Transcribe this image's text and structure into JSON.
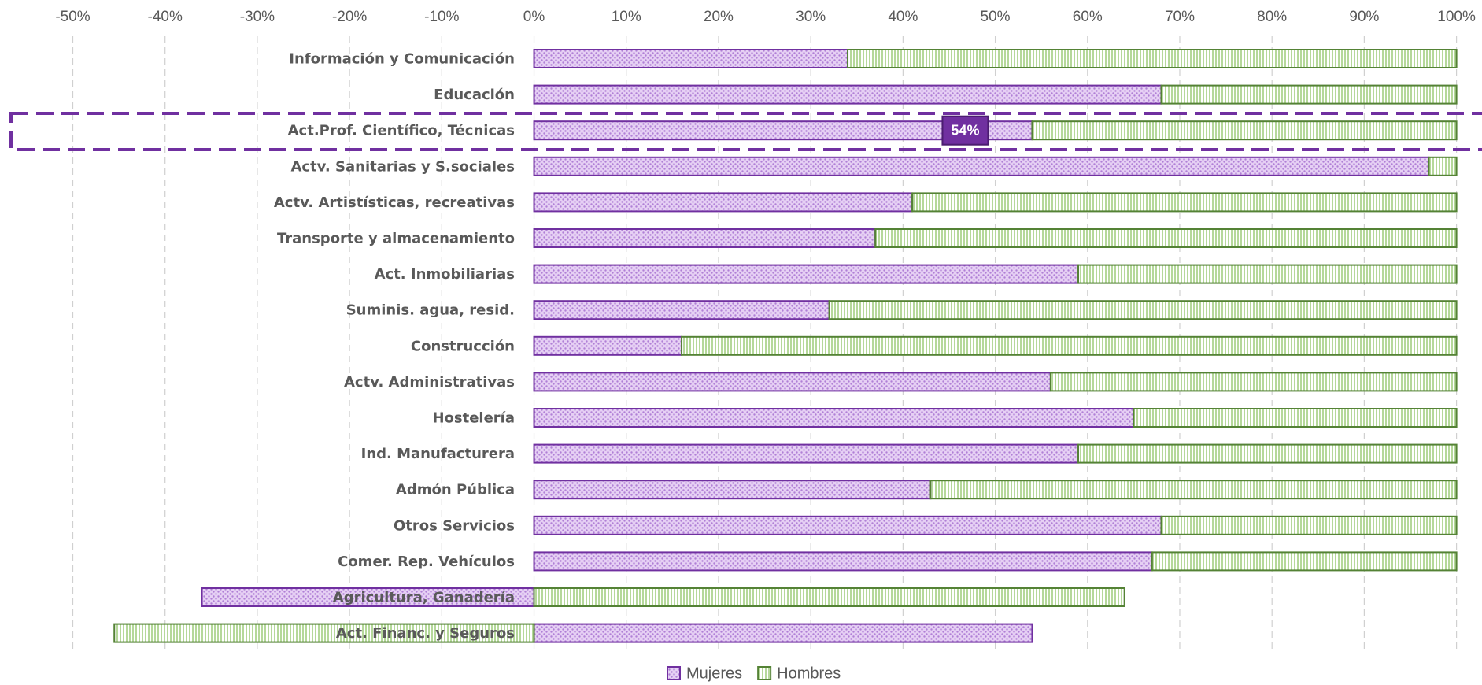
{
  "chart_data": {
    "type": "stacked-bar-horizontal",
    "categories": [
      "Información y Comunicación",
      "Educación",
      "Act.Prof. Científico, Técnicas",
      "Actv. Sanitarias y S.sociales",
      "Actv. Artistísticas, recreativas",
      "Transporte y almacenamiento",
      "Act. Inmobiliarias",
      "Suminis. agua, resid.",
      "Construcción",
      "Actv. Administrativas ",
      "Hostelería",
      "Ind. Manufacturera",
      "Admón Pública",
      "Otros Servicios",
      "Comer. Rep. Vehículos",
      "Agricultura, Ganadería",
      "Act. Financ. y Seguros"
    ],
    "series": [
      {
        "name": "Mujeres",
        "color": "#7030a0",
        "fill": "#d9b8ee",
        "values": [
          34,
          68,
          54,
          97,
          41,
          37,
          59,
          32,
          16,
          56,
          65,
          59,
          43,
          68,
          67,
          -36,
          54
        ],
        "value_labels": [
          null,
          null,
          "54%",
          null,
          null,
          null,
          null,
          null,
          null,
          null,
          null,
          null,
          null,
          null,
          null,
          null,
          null
        ]
      },
      {
        "name": "Hombres",
        "color": "#548235",
        "fill": "#c5e0b4",
        "values": [
          66,
          32,
          46,
          3,
          59,
          63,
          41,
          68,
          84,
          44,
          35,
          41,
          57,
          32,
          33,
          64,
          -45.5
        ]
      }
    ],
    "xlim": [
      -50,
      100
    ],
    "xticks": [
      {
        "value": -50,
        "label": "-50%"
      },
      {
        "value": -40,
        "label": "-40%"
      },
      {
        "value": -30,
        "label": "-30%"
      },
      {
        "value": -20,
        "label": "-20%"
      },
      {
        "value": -10,
        "label": "-10%"
      },
      {
        "value": 0,
        "label": "0%"
      },
      {
        "value": 10,
        "label": "10%"
      },
      {
        "value": 20,
        "label": "20%"
      },
      {
        "value": 30,
        "label": "30%"
      },
      {
        "value": 40,
        "label": "40%"
      },
      {
        "value": 50,
        "label": "50%"
      },
      {
        "value": 60,
        "label": "60%"
      },
      {
        "value": 70,
        "label": "70%"
      },
      {
        "value": 80,
        "label": "80%"
      },
      {
        "value": 90,
        "label": "90%"
      },
      {
        "value": 100,
        "label": "100%"
      }
    ],
    "grid": true,
    "legend": "bottom"
  }
}
